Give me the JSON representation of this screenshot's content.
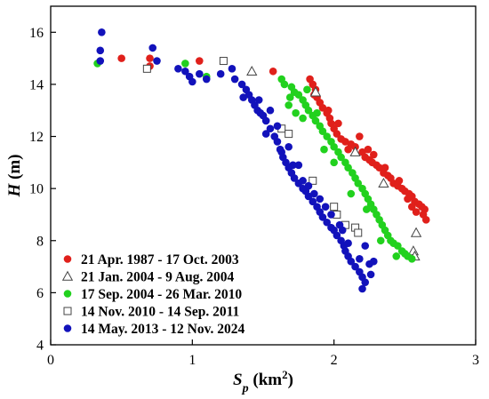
{
  "chart_data": {
    "type": "scatter",
    "xlabel": {
      "main": "S",
      "sub": "p",
      "unit_pre": " (km",
      "unit_sup": "2",
      "unit_post": ")"
    },
    "ylabel": {
      "main": "H",
      "unit": " (m)"
    },
    "xlim": [
      0,
      3
    ],
    "ylim": [
      4,
      17
    ],
    "x_ticks": [
      0,
      1,
      2,
      3
    ],
    "y_ticks": [
      4,
      6,
      8,
      10,
      12,
      14,
      16
    ],
    "grid": false,
    "legend_placement": "bottom-left",
    "series": [
      {
        "name": "21 Apr. 1987 - 17 Oct. 2003",
        "marker": "filled-circle",
        "color": "#e0201b",
        "points": [
          [
            0.5,
            15.0
          ],
          [
            0.7,
            15.0
          ],
          [
            0.7,
            14.7
          ],
          [
            1.05,
            14.9
          ],
          [
            1.22,
            14.9
          ],
          [
            1.57,
            14.5
          ],
          [
            1.83,
            14.2
          ],
          [
            1.85,
            14.0
          ],
          [
            1.87,
            13.8
          ],
          [
            1.88,
            13.5
          ],
          [
            1.9,
            13.3
          ],
          [
            1.92,
            13.1
          ],
          [
            1.95,
            12.9
          ],
          [
            1.97,
            12.7
          ],
          [
            1.98,
            12.5
          ],
          [
            2.0,
            12.3
          ],
          [
            2.02,
            12.1
          ],
          [
            2.05,
            11.9
          ],
          [
            2.08,
            11.8
          ],
          [
            2.12,
            11.7
          ],
          [
            2.15,
            11.6
          ],
          [
            2.2,
            11.4
          ],
          [
            2.22,
            11.2
          ],
          [
            2.25,
            11.1
          ],
          [
            2.27,
            11.0
          ],
          [
            2.3,
            10.9
          ],
          [
            2.32,
            10.8
          ],
          [
            2.35,
            10.6
          ],
          [
            2.38,
            10.5
          ],
          [
            2.4,
            10.4
          ],
          [
            2.42,
            10.2
          ],
          [
            2.45,
            10.1
          ],
          [
            2.48,
            10.0
          ],
          [
            2.5,
            9.9
          ],
          [
            2.53,
            9.8
          ],
          [
            2.55,
            9.7
          ],
          [
            2.57,
            9.5
          ],
          [
            2.6,
            9.4
          ],
          [
            2.62,
            9.3
          ],
          [
            2.64,
            9.2
          ],
          [
            2.63,
            9.0
          ],
          [
            2.58,
            9.1
          ],
          [
            2.55,
            9.3
          ],
          [
            2.52,
            9.6
          ],
          [
            2.46,
            10.3
          ],
          [
            2.36,
            10.8
          ],
          [
            2.24,
            11.5
          ],
          [
            2.18,
            12.0
          ],
          [
            2.03,
            12.5
          ],
          [
            1.96,
            13.0
          ],
          [
            1.86,
            13.6
          ],
          [
            2.65,
            8.8
          ],
          [
            2.1,
            11.5
          ],
          [
            2.28,
            11.3
          ]
        ]
      },
      {
        "name": "21 Jan. 2004 - 9 Aug. 2004",
        "marker": "open-triangle",
        "color": "#444444",
        "points": [
          [
            1.42,
            14.5
          ],
          [
            1.87,
            13.7
          ],
          [
            2.15,
            11.4
          ],
          [
            2.35,
            10.2
          ],
          [
            2.58,
            8.3
          ],
          [
            2.56,
            7.6
          ],
          [
            2.57,
            7.4
          ]
        ]
      },
      {
        "name": "17 Sep. 2004 - 26 Mar. 2010",
        "marker": "filled-circle",
        "color": "#22d11e",
        "points": [
          [
            0.33,
            14.8
          ],
          [
            0.95,
            14.8
          ],
          [
            1.1,
            14.3
          ],
          [
            1.63,
            14.2
          ],
          [
            1.65,
            14.0
          ],
          [
            1.7,
            13.9
          ],
          [
            1.72,
            13.7
          ],
          [
            1.75,
            13.6
          ],
          [
            1.78,
            13.4
          ],
          [
            1.8,
            13.2
          ],
          [
            1.82,
            13.0
          ],
          [
            1.85,
            12.8
          ],
          [
            1.87,
            12.6
          ],
          [
            1.9,
            12.4
          ],
          [
            1.92,
            12.2
          ],
          [
            1.95,
            12.0
          ],
          [
            1.98,
            11.8
          ],
          [
            2.0,
            11.6
          ],
          [
            2.03,
            11.4
          ],
          [
            2.05,
            11.2
          ],
          [
            2.08,
            11.0
          ],
          [
            2.1,
            10.8
          ],
          [
            2.13,
            10.6
          ],
          [
            2.15,
            10.4
          ],
          [
            2.17,
            10.2
          ],
          [
            2.2,
            10.0
          ],
          [
            2.22,
            9.8
          ],
          [
            2.24,
            9.6
          ],
          [
            2.26,
            9.4
          ],
          [
            2.28,
            9.2
          ],
          [
            2.3,
            9.0
          ],
          [
            2.32,
            8.8
          ],
          [
            2.34,
            8.6
          ],
          [
            2.36,
            8.4
          ],
          [
            2.38,
            8.2
          ],
          [
            2.4,
            8.0
          ],
          [
            2.42,
            7.9
          ],
          [
            2.45,
            7.8
          ],
          [
            2.48,
            7.6
          ],
          [
            2.5,
            7.5
          ],
          [
            2.52,
            7.4
          ],
          [
            2.55,
            7.3
          ],
          [
            1.68,
            13.2
          ],
          [
            1.73,
            12.9
          ],
          [
            1.78,
            12.7
          ],
          [
            1.88,
            12.9
          ],
          [
            2.0,
            11.0
          ],
          [
            2.12,
            9.8
          ],
          [
            2.23,
            9.2
          ],
          [
            2.33,
            8.0
          ],
          [
            2.44,
            7.4
          ],
          [
            1.81,
            13.8
          ],
          [
            1.69,
            13.5
          ],
          [
            1.93,
            11.5
          ]
        ]
      },
      {
        "name": "14 Nov. 2010 - 14 Sep. 2011",
        "marker": "open-square",
        "color": "#444444",
        "points": [
          [
            0.68,
            14.6
          ],
          [
            1.22,
            14.9
          ],
          [
            1.63,
            12.3
          ],
          [
            1.68,
            12.1
          ],
          [
            1.85,
            10.3
          ],
          [
            2.0,
            9.3
          ],
          [
            2.02,
            9.0
          ],
          [
            2.08,
            8.6
          ],
          [
            2.15,
            8.5
          ],
          [
            2.17,
            8.3
          ]
        ]
      },
      {
        "name": "14 May. 2013 - 12 Nov. 2024",
        "marker": "filled-circle",
        "color": "#1212bb",
        "points": [
          [
            0.36,
            16.0
          ],
          [
            0.35,
            15.3
          ],
          [
            0.35,
            14.9
          ],
          [
            0.72,
            15.4
          ],
          [
            0.75,
            14.9
          ],
          [
            0.9,
            14.6
          ],
          [
            0.95,
            14.5
          ],
          [
            0.98,
            14.3
          ],
          [
            1.0,
            14.1
          ],
          [
            1.05,
            14.4
          ],
          [
            1.1,
            14.2
          ],
          [
            1.2,
            14.4
          ],
          [
            1.3,
            14.2
          ],
          [
            1.35,
            14.0
          ],
          [
            1.38,
            13.8
          ],
          [
            1.4,
            13.6
          ],
          [
            1.42,
            13.4
          ],
          [
            1.44,
            13.2
          ],
          [
            1.46,
            13.0
          ],
          [
            1.48,
            12.9
          ],
          [
            1.5,
            12.8
          ],
          [
            1.52,
            12.6
          ],
          [
            1.55,
            12.3
          ],
          [
            1.58,
            12.0
          ],
          [
            1.6,
            11.8
          ],
          [
            1.62,
            11.5
          ],
          [
            1.64,
            11.2
          ],
          [
            1.66,
            11.0
          ],
          [
            1.68,
            10.8
          ],
          [
            1.7,
            10.6
          ],
          [
            1.72,
            10.4
          ],
          [
            1.75,
            10.2
          ],
          [
            1.78,
            10.0
          ],
          [
            1.8,
            9.9
          ],
          [
            1.82,
            9.7
          ],
          [
            1.85,
            9.5
          ],
          [
            1.88,
            9.3
          ],
          [
            1.9,
            9.1
          ],
          [
            1.92,
            8.9
          ],
          [
            1.95,
            8.7
          ],
          [
            1.98,
            8.5
          ],
          [
            2.0,
            8.4
          ],
          [
            2.02,
            8.2
          ],
          [
            2.05,
            8.0
          ],
          [
            2.07,
            7.8
          ],
          [
            2.08,
            7.6
          ],
          [
            2.1,
            7.4
          ],
          [
            2.12,
            7.2
          ],
          [
            2.15,
            7.0
          ],
          [
            2.18,
            6.8
          ],
          [
            2.2,
            6.6
          ],
          [
            2.22,
            6.4
          ],
          [
            2.2,
            6.15
          ],
          [
            2.25,
            7.1
          ],
          [
            2.28,
            7.2
          ],
          [
            2.26,
            6.7
          ],
          [
            2.18,
            7.3
          ],
          [
            2.22,
            7.8
          ],
          [
            1.55,
            13.0
          ],
          [
            1.6,
            12.4
          ],
          [
            1.68,
            11.6
          ],
          [
            1.75,
            10.9
          ],
          [
            1.82,
            10.1
          ],
          [
            1.9,
            9.6
          ],
          [
            1.98,
            9.0
          ],
          [
            2.06,
            8.4
          ],
          [
            1.36,
            13.5
          ],
          [
            1.52,
            12.1
          ],
          [
            1.63,
            11.4
          ],
          [
            1.78,
            10.3
          ],
          [
            1.86,
            9.8
          ],
          [
            1.94,
            9.3
          ],
          [
            2.04,
            8.6
          ],
          [
            2.1,
            7.9
          ],
          [
            1.28,
            14.6
          ],
          [
            1.47,
            13.4
          ],
          [
            1.71,
            10.9
          ]
        ]
      }
    ]
  }
}
